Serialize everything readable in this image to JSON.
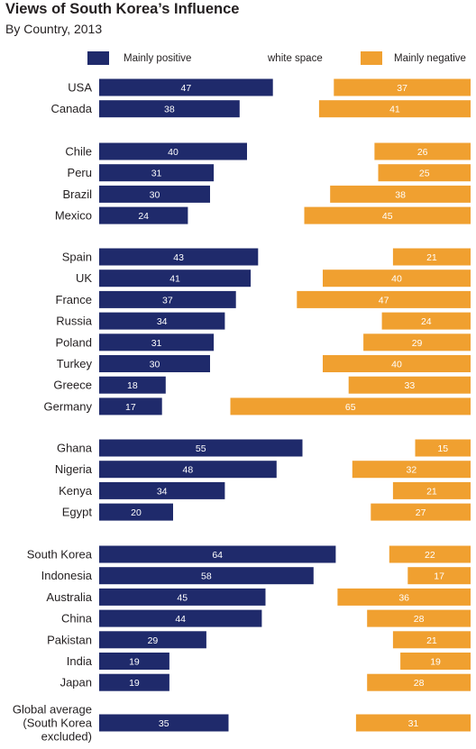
{
  "title": "Views of South Korea’s Influence",
  "subtitle": "By Country, 2013",
  "legend": {
    "positive": "Mainly positive",
    "middle": "white space",
    "negative": "Mainly negative"
  },
  "colors": {
    "positive": "#1f2a6b",
    "negative": "#f0a030"
  },
  "chart_data": {
    "type": "bar",
    "title": "Views of South Korea’s Influence",
    "subtitle": "By Country, 2013",
    "groups": [
      {
        "categories": [
          "USA",
          "Canada"
        ],
        "positive": [
          47,
          38
        ],
        "negative": [
          37,
          41
        ]
      },
      {
        "categories": [
          "Chile",
          "Peru",
          "Brazil",
          "Mexico"
        ],
        "positive": [
          40,
          31,
          30,
          24
        ],
        "negative": [
          26,
          25,
          38,
          45
        ]
      },
      {
        "categories": [
          "Spain",
          "UK",
          "France",
          "Russia",
          "Poland",
          "Turkey",
          "Greece",
          "Germany"
        ],
        "positive": [
          43,
          41,
          37,
          34,
          31,
          30,
          18,
          17
        ],
        "negative": [
          21,
          40,
          47,
          24,
          29,
          40,
          33,
          65
        ]
      },
      {
        "categories": [
          "Ghana",
          "Nigeria",
          "Kenya",
          "Egypt"
        ],
        "positive": [
          55,
          48,
          34,
          20
        ],
        "negative": [
          15,
          32,
          21,
          27
        ]
      },
      {
        "categories": [
          "South Korea",
          "Indonesia",
          "Australia",
          "China",
          "Pakistan",
          "India",
          "Japan"
        ],
        "positive": [
          64,
          58,
          45,
          44,
          29,
          19,
          19
        ],
        "negative": [
          22,
          17,
          36,
          28,
          21,
          19,
          28
        ]
      },
      {
        "categories": [
          "Global average\n(South Korea\nexcluded)"
        ],
        "positive": [
          35
        ],
        "negative": [
          31
        ]
      }
    ],
    "series": [
      {
        "name": "Mainly positive",
        "key": "positive"
      },
      {
        "name": "Mainly negative",
        "key": "negative"
      }
    ]
  }
}
